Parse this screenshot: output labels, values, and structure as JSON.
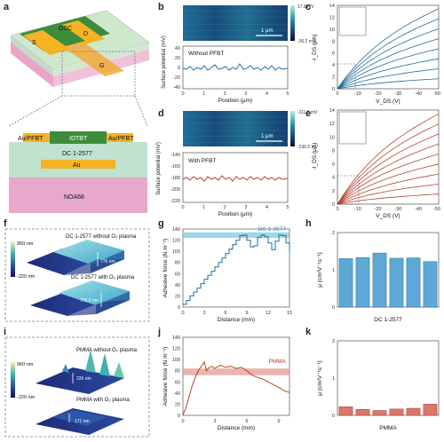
{
  "panel_letters": [
    "a",
    "b",
    "c",
    "d",
    "e",
    "f",
    "g",
    "h",
    "i",
    "j",
    "k"
  ],
  "device": {
    "top_labels": {
      "osc": "OSC",
      "s": "S",
      "d": "D",
      "g": "G"
    },
    "cross_section": {
      "au_pfbt_left": "Au/PFBT",
      "idtbt": "IDTBT",
      "au_pfbt_right": "Au/PFBT",
      "dc_layer": "DC 1-2577",
      "au_gate": "Au",
      "substrate": "NOA68"
    }
  },
  "kpfm_b": {
    "colorbar_max": "17.8 mV",
    "colorbar_min": "-36.2 mV",
    "scale": "1 μm",
    "legend": "Without PFBT",
    "ylabel": "Surface potential (mV)",
    "xlabel": "Position (μm)",
    "yticks": [
      "40",
      "20",
      "0",
      "-20",
      "-40"
    ],
    "xticks": [
      "0",
      "1",
      "2",
      "3",
      "4",
      "5"
    ]
  },
  "kpfm_d": {
    "colorbar_max": "-111.0 mV",
    "colorbar_min": "-236.5 mV",
    "scale": "1 μm",
    "legend": "With PFBT",
    "ylabel": "Surface potential (mV)",
    "xlabel": "Position (μm)",
    "yticks": [
      "-140",
      "-160",
      "-180",
      "-200",
      "-220"
    ],
    "xticks": [
      "0",
      "1",
      "2",
      "3",
      "4",
      "5"
    ]
  },
  "output_c": {
    "ylabel": "-I_DS (μA)",
    "xlabel": "V_DS (V)",
    "yticks": [
      "14",
      "12",
      "10",
      "8",
      "6",
      "4",
      "2",
      "0"
    ],
    "xticks": [
      "0",
      "-10",
      "-20",
      "-30",
      "-40",
      "-50"
    ],
    "color": "#1f6e9c"
  },
  "output_e": {
    "ylabel": "-I_DS (μA)",
    "xlabel": "V_DS (V)",
    "yticks": [
      "14",
      "12",
      "10",
      "8",
      "6",
      "4",
      "2",
      "0"
    ],
    "xticks": [
      "0",
      "-10",
      "-20",
      "-30",
      "-40",
      "-50"
    ],
    "color": "#b5452b"
  },
  "afm_f": {
    "top_label": "DC 1-2577 without O₂ plasma",
    "top_height": "776 nm",
    "bottom_label": "DC 1-2577 with O₂ plasma",
    "bottom_height": "775.2 nm",
    "cbar_max": "960 nm",
    "cbar_min": "-220 nm"
  },
  "afm_i": {
    "top_label": "PMMA without O₂ plasma",
    "top_height": "226 nm",
    "bottom_label": "PMMA with O₂ plasma",
    "bottom_height": "171 nm",
    "cbar_max": "960 nm",
    "cbar_min": "-220 nm"
  },
  "chart_data": [
    {
      "type": "line",
      "panel": "g",
      "legend": "DC 1-2577",
      "xlabel": "Distance (mm)",
      "ylabel": "Adhesive force (N m⁻¹)",
      "xlim": [
        0,
        15
      ],
      "ylim": [
        0,
        140
      ],
      "xticks": [
        "0",
        "3",
        "6",
        "9",
        "12",
        "15"
      ],
      "yticks": [
        "0",
        "20",
        "40",
        "60",
        "80",
        "100",
        "120",
        "140"
      ],
      "band": [
        124,
        134
      ],
      "x": [
        0,
        0.5,
        1,
        1.5,
        2,
        2.5,
        3,
        3.5,
        4,
        4.5,
        5,
        5.5,
        6,
        6.5,
        7,
        7.5,
        8,
        8.5,
        9,
        9.5,
        10,
        10.5,
        11,
        11.5,
        12,
        12.5,
        13,
        13.5,
        14,
        14.5,
        15
      ],
      "y": [
        5,
        12,
        20,
        27,
        34,
        42,
        50,
        57,
        64,
        72,
        80,
        88,
        96,
        104,
        112,
        120,
        128,
        129,
        120,
        108,
        110,
        125,
        129,
        126,
        115,
        103,
        118,
        129,
        128,
        115,
        100
      ]
    },
    {
      "type": "bar",
      "panel": "h",
      "xlabel": "DC 1-2577",
      "ylabel": "μ (cm²V⁻¹s⁻¹)",
      "ylim": [
        0,
        2
      ],
      "yticks": [
        "0",
        "1",
        "2"
      ],
      "values": [
        1.3,
        1.33,
        1.45,
        1.31,
        1.32,
        1.22
      ]
    },
    {
      "type": "line",
      "panel": "j",
      "legend": "PMMA",
      "xlabel": "Distance (mm)",
      "ylabel": "Adhesive force (N m⁻¹)",
      "xlim": [
        0,
        10
      ],
      "ylim": [
        0,
        140
      ],
      "xticks": [
        "0",
        "3",
        "6",
        "9"
      ],
      "yticks": [
        "0",
        "20",
        "40",
        "60",
        "80",
        "100",
        "120",
        "140"
      ],
      "band": [
        72,
        84
      ],
      "x": [
        0,
        0.3,
        0.6,
        0.9,
        1.2,
        1.5,
        1.8,
        2.0,
        2.2,
        2.4,
        2.7,
        3,
        3.5,
        4,
        4.5,
        5,
        5.5,
        6,
        6.5,
        7,
        7.5,
        8,
        8.5,
        9,
        9.5,
        10
      ],
      "y": [
        0,
        15,
        35,
        55,
        70,
        82,
        90,
        96,
        80,
        85,
        88,
        84,
        90,
        86,
        88,
        84,
        86,
        80,
        72,
        68,
        65,
        60,
        55,
        50,
        44,
        41
      ]
    },
    {
      "type": "bar",
      "panel": "k",
      "xlabel": "PMMA",
      "ylabel": "μ (cm²V⁻¹s⁻¹)",
      "ylim": [
        0,
        2
      ],
      "yticks": [
        "0",
        "1",
        "2"
      ],
      "values": [
        0.23,
        0.16,
        0.13,
        0.17,
        0.19,
        0.3
      ]
    }
  ]
}
